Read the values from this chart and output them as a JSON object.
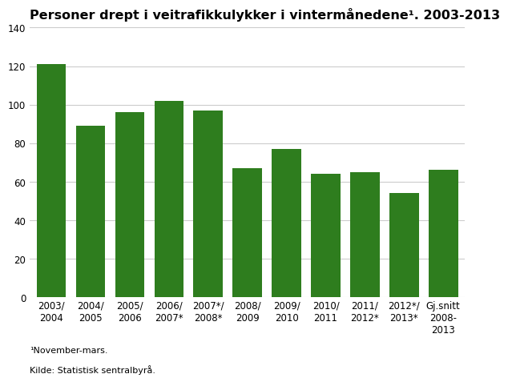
{
  "title": "Personer drept i veitrafikkulykker i vintermånedene¹. 2003-2013",
  "categories": [
    "2003/\n2004",
    "2004/\n2005",
    "2005/\n2006",
    "2006/\n2007*",
    "2007*/\n2008*",
    "2008/\n2009",
    "2009/\n2010",
    "2010/\n2011",
    "2011/\n2012*",
    "2012*/\n2013*",
    "Gj.snitt\n2008-\n2013"
  ],
  "values": [
    121,
    89,
    96,
    102,
    97,
    67,
    77,
    64,
    65,
    54,
    66
  ],
  "bar_color": "#2e7d1e",
  "ylim": [
    0,
    140
  ],
  "yticks": [
    0,
    20,
    40,
    60,
    80,
    100,
    120,
    140
  ],
  "footnote1": "¹November-mars.",
  "footnote2": "Kilde: Statistisk sentralbyrå.",
  "background_color": "#ffffff",
  "grid_color": "#cccccc",
  "title_fontsize": 11.5,
  "tick_fontsize": 8.5,
  "footnote_fontsize": 8.0
}
